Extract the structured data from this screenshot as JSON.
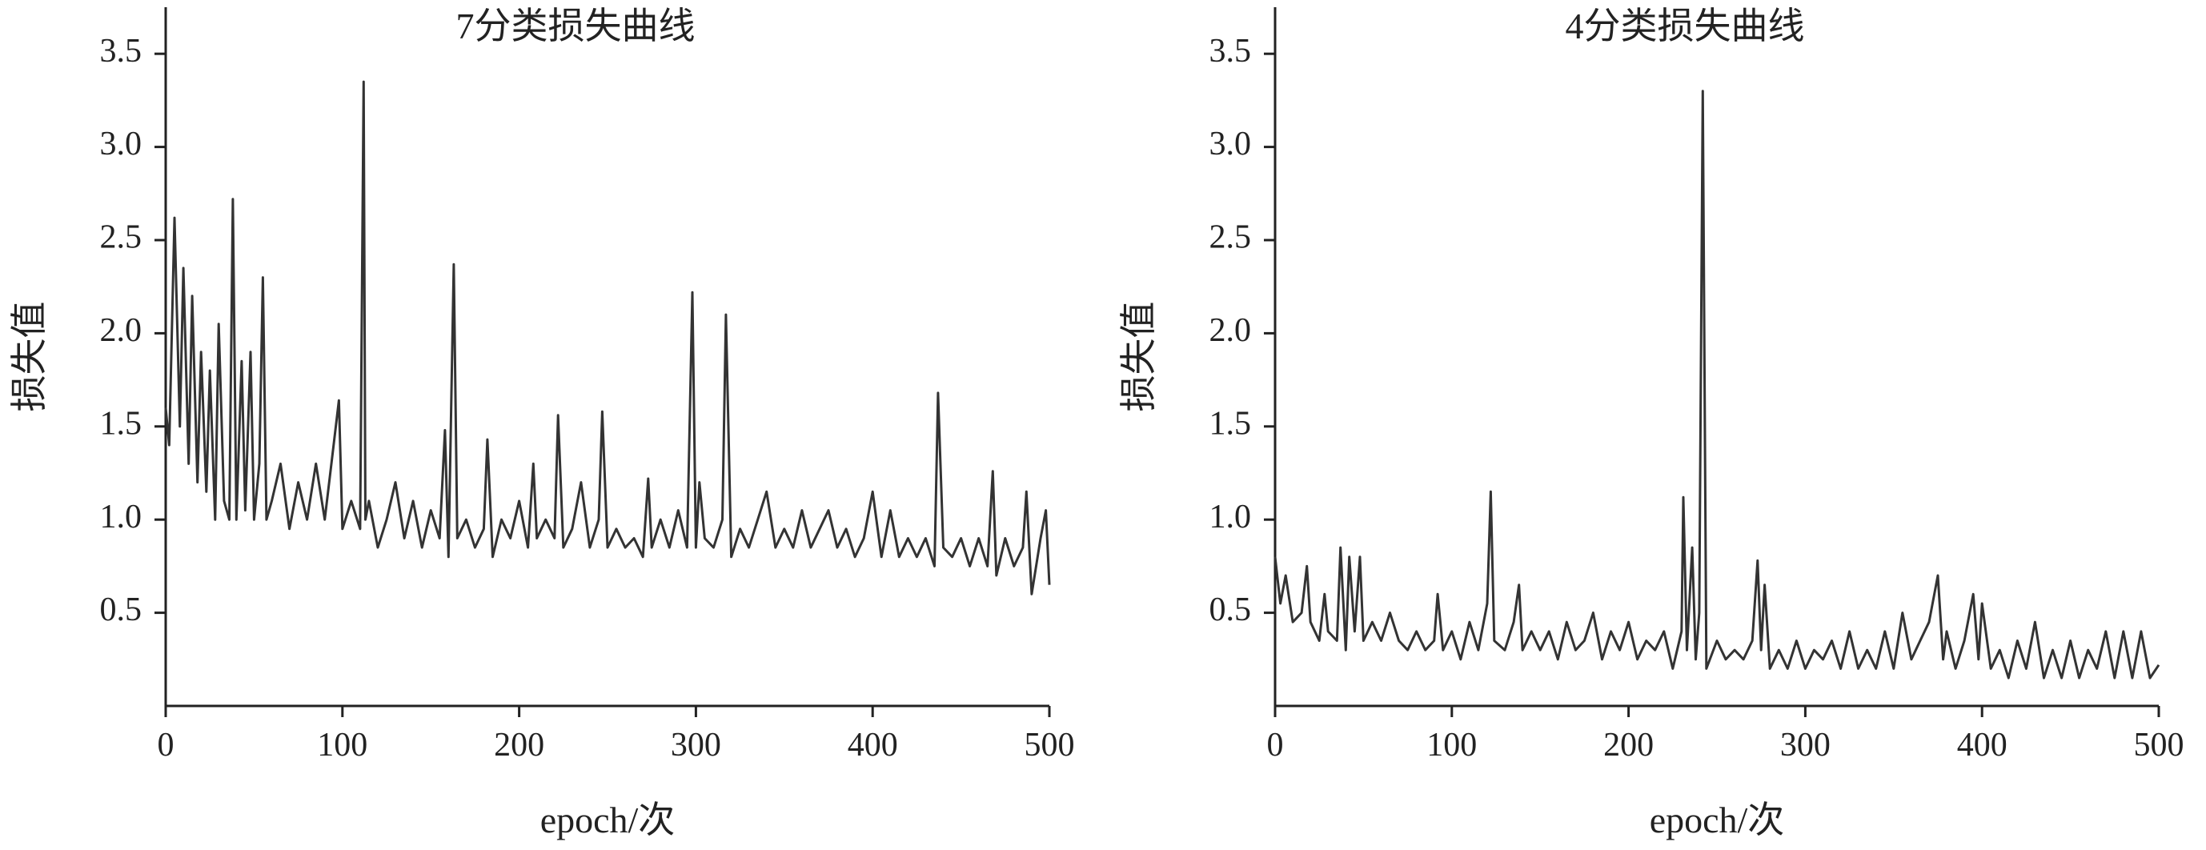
{
  "chart_data": [
    {
      "type": "line",
      "title": "7分类损失曲线",
      "xlabel": "epoch/次",
      "ylabel": "损失值",
      "color": "#333333",
      "xlim": [
        0,
        500
      ],
      "xticks": [
        0,
        100,
        200,
        300,
        400,
        500
      ],
      "ylim": [
        0,
        3.75
      ],
      "yticks": [
        0.5,
        {
          "value": 1,
          "label": "1.0"
        },
        1.5,
        {
          "value": 2,
          "label": "2.0"
        },
        2.5,
        {
          "value": 3,
          "label": "3.0"
        },
        3.5
      ],
      "x": [
        0,
        2,
        5,
        8,
        10,
        13,
        15,
        18,
        20,
        23,
        25,
        28,
        30,
        33,
        36,
        38,
        40,
        43,
        45,
        48,
        50,
        53,
        55,
        57,
        60,
        65,
        70,
        75,
        80,
        85,
        90,
        95,
        98,
        100,
        105,
        110,
        112,
        113,
        115,
        120,
        125,
        130,
        135,
        140,
        145,
        150,
        155,
        158,
        160,
        163,
        165,
        170,
        175,
        180,
        182,
        185,
        190,
        195,
        200,
        205,
        208,
        210,
        215,
        220,
        222,
        225,
        230,
        235,
        240,
        245,
        247,
        250,
        255,
        260,
        265,
        270,
        273,
        275,
        280,
        285,
        290,
        295,
        298,
        300,
        302,
        305,
        310,
        315,
        317,
        320,
        325,
        330,
        335,
        340,
        345,
        350,
        355,
        360,
        365,
        370,
        375,
        380,
        385,
        390,
        395,
        400,
        405,
        410,
        415,
        420,
        425,
        430,
        435,
        437,
        440,
        445,
        450,
        455,
        460,
        465,
        468,
        470,
        475,
        480,
        485,
        487,
        490,
        495,
        498,
        500
      ],
      "values": [
        1.6,
        1.4,
        2.62,
        1.5,
        2.35,
        1.3,
        2.2,
        1.2,
        1.9,
        1.15,
        1.8,
        1.0,
        2.05,
        1.1,
        1.0,
        2.72,
        1.0,
        1.85,
        1.05,
        1.9,
        1.0,
        1.3,
        2.3,
        1.0,
        1.1,
        1.3,
        0.95,
        1.2,
        1.0,
        1.3,
        1.0,
        1.4,
        1.64,
        0.95,
        1.1,
        0.95,
        3.35,
        1.0,
        1.1,
        0.85,
        1.0,
        1.2,
        0.9,
        1.1,
        0.85,
        1.05,
        0.9,
        1.48,
        0.8,
        2.37,
        0.9,
        1.0,
        0.85,
        0.95,
        1.43,
        0.8,
        1.0,
        0.9,
        1.1,
        0.85,
        1.3,
        0.9,
        1.0,
        0.9,
        1.56,
        0.85,
        0.95,
        1.2,
        0.85,
        1.0,
        1.58,
        0.85,
        0.95,
        0.85,
        0.9,
        0.8,
        1.22,
        0.85,
        1.0,
        0.85,
        1.05,
        0.85,
        2.22,
        0.85,
        1.2,
        0.9,
        0.85,
        1.0,
        2.1,
        0.8,
        0.95,
        0.85,
        1.0,
        1.15,
        0.85,
        0.95,
        0.85,
        1.05,
        0.85,
        0.95,
        1.05,
        0.85,
        0.95,
        0.8,
        0.9,
        1.15,
        0.8,
        1.05,
        0.8,
        0.9,
        0.8,
        0.9,
        0.75,
        1.68,
        0.85,
        0.8,
        0.9,
        0.75,
        0.9,
        0.75,
        1.26,
        0.7,
        0.9,
        0.75,
        0.85,
        1.15,
        0.6,
        0.9,
        1.05,
        0.65
      ]
    },
    {
      "type": "line",
      "title": "4分类损失曲线",
      "xlabel": "epoch/次",
      "ylabel": "损失值",
      "color": "#333333",
      "xlim": [
        0,
        500
      ],
      "xticks": [
        0,
        100,
        200,
        300,
        400,
        500
      ],
      "ylim": [
        0,
        3.75
      ],
      "yticks": [
        0.5,
        {
          "value": 1,
          "label": "1.0"
        },
        1.5,
        {
          "value": 2,
          "label": "2.0"
        },
        2.5,
        {
          "value": 3,
          "label": "3.0"
        },
        3.5
      ],
      "x": [
        0,
        3,
        6,
        10,
        15,
        18,
        20,
        25,
        28,
        30,
        35,
        37,
        40,
        42,
        45,
        48,
        50,
        55,
        60,
        65,
        70,
        75,
        80,
        85,
        90,
        92,
        95,
        100,
        105,
        110,
        115,
        120,
        122,
        124,
        130,
        135,
        138,
        140,
        145,
        150,
        155,
        160,
        165,
        170,
        175,
        180,
        185,
        190,
        195,
        200,
        205,
        210,
        215,
        220,
        225,
        230,
        231,
        233,
        236,
        238,
        240,
        242,
        244,
        250,
        255,
        260,
        265,
        270,
        273,
        275,
        277,
        280,
        285,
        290,
        295,
        300,
        305,
        310,
        315,
        320,
        325,
        330,
        335,
        340,
        345,
        350,
        355,
        360,
        365,
        370,
        375,
        378,
        380,
        385,
        390,
        395,
        398,
        400,
        405,
        410,
        415,
        420,
        425,
        430,
        435,
        440,
        445,
        450,
        455,
        460,
        465,
        470,
        475,
        480,
        485,
        490,
        495,
        500
      ],
      "values": [
        0.8,
        0.55,
        0.7,
        0.45,
        0.5,
        0.75,
        0.45,
        0.35,
        0.6,
        0.4,
        0.35,
        0.85,
        0.3,
        0.8,
        0.4,
        0.8,
        0.35,
        0.45,
        0.35,
        0.5,
        0.35,
        0.3,
        0.4,
        0.3,
        0.35,
        0.6,
        0.3,
        0.4,
        0.25,
        0.45,
        0.3,
        0.55,
        1.15,
        0.35,
        0.3,
        0.45,
        0.65,
        0.3,
        0.4,
        0.3,
        0.4,
        0.25,
        0.45,
        0.3,
        0.35,
        0.5,
        0.25,
        0.4,
        0.3,
        0.45,
        0.25,
        0.35,
        0.3,
        0.4,
        0.2,
        0.4,
        1.12,
        0.3,
        0.85,
        0.25,
        0.5,
        3.3,
        0.2,
        0.35,
        0.25,
        0.3,
        0.25,
        0.35,
        0.78,
        0.3,
        0.65,
        0.2,
        0.3,
        0.2,
        0.35,
        0.2,
        0.3,
        0.25,
        0.35,
        0.2,
        0.4,
        0.2,
        0.3,
        0.2,
        0.4,
        0.2,
        0.5,
        0.25,
        0.35,
        0.45,
        0.7,
        0.25,
        0.4,
        0.2,
        0.35,
        0.6,
        0.25,
        0.55,
        0.2,
        0.3,
        0.15,
        0.35,
        0.2,
        0.45,
        0.15,
        0.3,
        0.15,
        0.35,
        0.15,
        0.3,
        0.2,
        0.4,
        0.15,
        0.4,
        0.15,
        0.4,
        0.15,
        0.22
      ]
    }
  ]
}
